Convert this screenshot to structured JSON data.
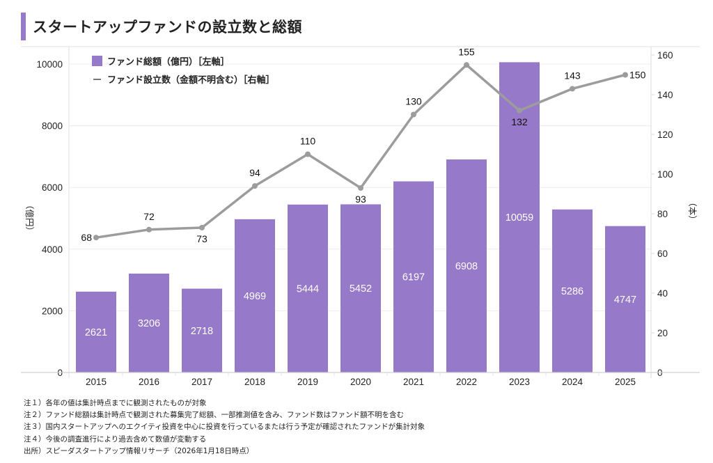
{
  "title": "スタートアップファンドの設立数と総額",
  "colors": {
    "accent": "#9679c8",
    "bar": "#9679c8",
    "line": "#9c9c9c",
    "grid": "#ececf2",
    "axis": "#d0d0d0"
  },
  "chart_data": {
    "type": "bar+line",
    "title": "スタートアップファンドの設立数と総額",
    "categories": [
      "2015",
      "2016",
      "2017",
      "2018",
      "2019",
      "2020",
      "2021",
      "2022",
      "2023",
      "2024",
      "2025"
    ],
    "series": [
      {
        "name": "ファンド総額（億円）［左軸］",
        "type": "bar",
        "axis": "left",
        "values": [
          2621,
          3206,
          2718,
          4969,
          5444,
          5452,
          6197,
          6908,
          10059,
          5286,
          4747
        ]
      },
      {
        "name": "ファンド設立数（金額不明含む）［右軸］",
        "type": "line",
        "axis": "right",
        "values": [
          68,
          72,
          73,
          94,
          110,
          93,
          130,
          155,
          132,
          143,
          150
        ]
      }
    ],
    "left_axis": {
      "label": "（億円）",
      "ylim": [
        0,
        10000
      ],
      "ticks": [
        0,
        2000,
        4000,
        6000,
        8000,
        10000
      ]
    },
    "right_axis": {
      "label": "（本）",
      "ylim": [
        0,
        160
      ],
      "ticks": [
        0,
        20,
        40,
        60,
        80,
        100,
        120,
        140,
        160
      ]
    },
    "grid": true,
    "legend_position": "top-left"
  },
  "notes": [
    "注１）各年の値は集計時点までに観測されたものが対象",
    "注２）ファンド総額は集計時点で観測された募集完了総額、一部推測値を含み、ファンド数はファンド額不明を含む",
    "注３）国内スタートアップへのエクイティ投資を中心に投資を行っているまたは行う予定が確認されたファンドが集計対象",
    "注４）今後の調査進行により過去含めて数値が変動する",
    "出所）スピーダスタートアップ情報リサーチ（2026年1月18日時点）"
  ]
}
